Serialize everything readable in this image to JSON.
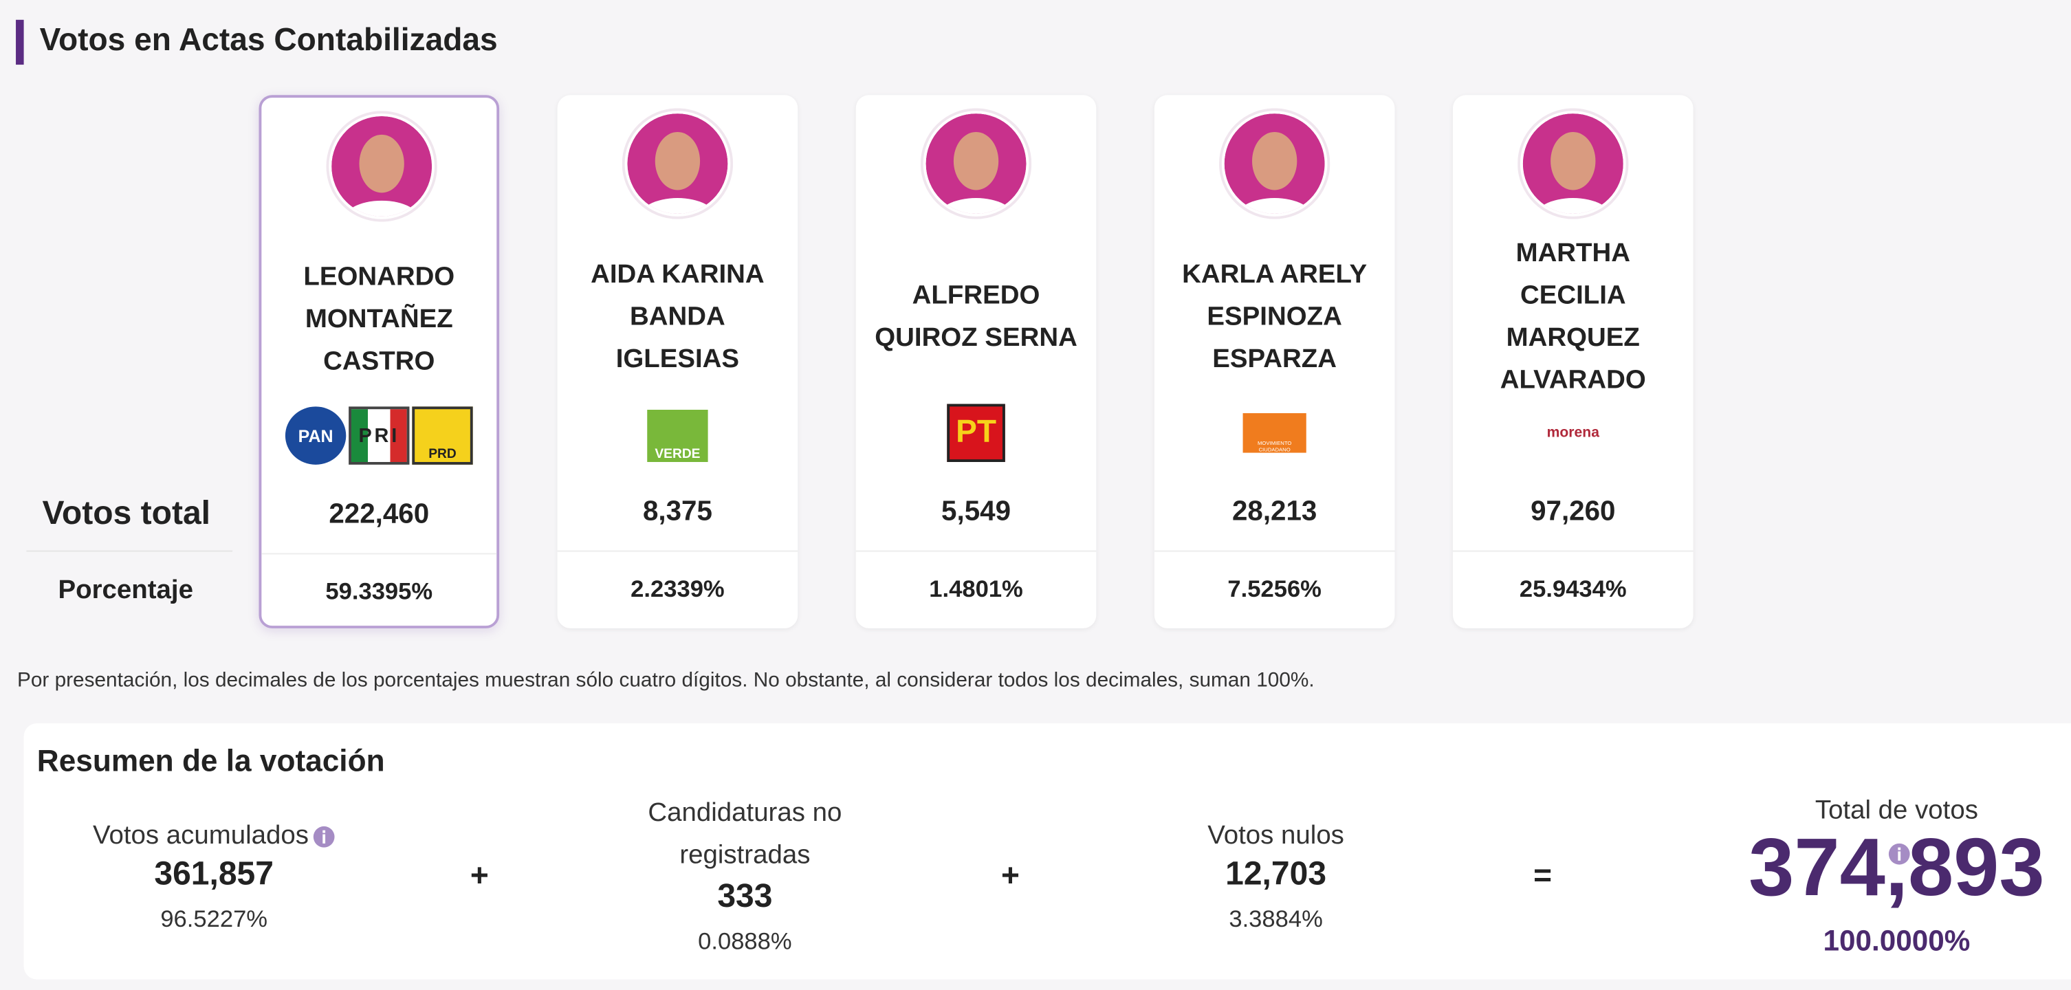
{
  "header": {
    "title": "Votos en Actas Contabilizadas"
  },
  "row_labels": [
    "Votos total",
    "Porcentaje"
  ],
  "candidates": [
    {
      "name": "LEONARDO\nMONTAÑEZ\nCASTRO",
      "logos": [
        "PAN",
        "PRI",
        "PRD"
      ],
      "votes": "222,460",
      "percent": "59.3395%"
    },
    {
      "name": "AIDA KARINA\nBANDA\nIGLESIAS",
      "logos": [
        "VERDE"
      ],
      "votes": "8,375",
      "percent": "2.2339%"
    },
    {
      "name": "ALFREDO\nQUIROZ SERNA",
      "logos": [
        "PT"
      ],
      "votes": "5,549",
      "percent": "1.4801%"
    },
    {
      "name": "KARLA ARELY\nESPINOZA\nESPARZA",
      "logos": [
        "MOVIMIENTO CIUDADANO"
      ],
      "votes": "28,213",
      "percent": "7.5256%"
    },
    {
      "name": "MARTHA\nCECILIA\nMARQUEZ\nALVARADO",
      "logos": [
        "morena"
      ],
      "votes": "97,260",
      "percent": "25.9434%"
    }
  ],
  "note": "Por presentación, los decimales de los porcentajes muestran sólo cuatro dígitos. No obstante, al considerar todos los decimales, suman 100%.",
  "summary": {
    "title": "Resumen de la votación",
    "items": [
      {
        "label": "Votos acumulados",
        "value": "361,857",
        "percent": "96.5227%"
      },
      {
        "label": "Candidaturas no\nregistradas",
        "value": "333",
        "percent": "0.0888%"
      },
      {
        "label": "Votos nulos",
        "value": "12,703",
        "percent": "3.3884%"
      },
      {
        "label": "Total de votos",
        "value": "374,893",
        "percent": "100.0000%"
      }
    ],
    "operators": [
      "+",
      "+",
      "="
    ]
  }
}
